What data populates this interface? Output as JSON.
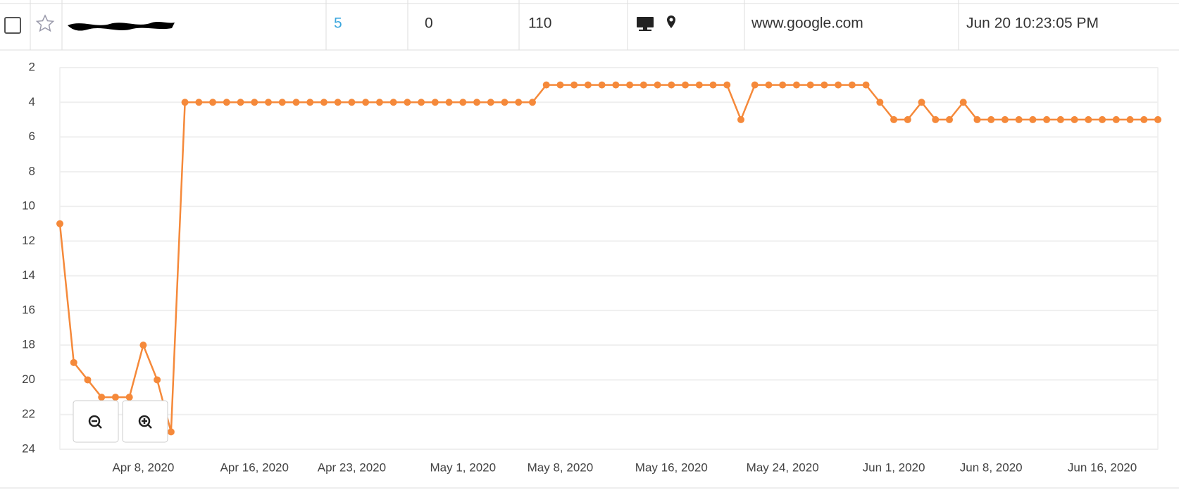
{
  "row": {
    "position": 5,
    "change": 0,
    "volume": 110,
    "url": "www.google.com",
    "updated": "Jun 20 10:23:05 PM"
  },
  "chart_data": {
    "type": "line",
    "x": [
      "2020-04-02",
      "2020-04-03",
      "2020-04-04",
      "2020-04-05",
      "2020-04-06",
      "2020-04-07",
      "2020-04-08",
      "2020-04-09",
      "2020-04-10",
      "2020-04-11",
      "2020-04-12",
      "2020-04-13",
      "2020-04-14",
      "2020-04-15",
      "2020-04-16",
      "2020-04-17",
      "2020-04-18",
      "2020-04-19",
      "2020-04-20",
      "2020-04-21",
      "2020-04-22",
      "2020-04-23",
      "2020-04-24",
      "2020-04-25",
      "2020-04-26",
      "2020-04-27",
      "2020-04-28",
      "2020-04-29",
      "2020-04-30",
      "2020-05-01",
      "2020-05-02",
      "2020-05-03",
      "2020-05-04",
      "2020-05-05",
      "2020-05-06",
      "2020-05-07",
      "2020-05-08",
      "2020-05-09",
      "2020-05-10",
      "2020-05-11",
      "2020-05-12",
      "2020-05-13",
      "2020-05-14",
      "2020-05-15",
      "2020-05-16",
      "2020-05-17",
      "2020-05-18",
      "2020-05-19",
      "2020-05-20",
      "2020-05-21",
      "2020-05-22",
      "2020-05-23",
      "2020-05-24",
      "2020-05-25",
      "2020-05-26",
      "2020-05-27",
      "2020-05-28",
      "2020-05-29",
      "2020-05-30",
      "2020-05-31",
      "2020-06-01",
      "2020-06-02",
      "2020-06-03",
      "2020-06-04",
      "2020-06-05",
      "2020-06-06",
      "2020-06-07",
      "2020-06-08",
      "2020-06-09",
      "2020-06-10",
      "2020-06-11",
      "2020-06-12",
      "2020-06-13",
      "2020-06-14",
      "2020-06-15",
      "2020-06-16",
      "2020-06-17",
      "2020-06-18",
      "2020-06-19",
      "2020-06-20"
    ],
    "series": [
      {
        "color": "#f5893a",
        "values": [
          11,
          19,
          20,
          21,
          21,
          21,
          18,
          20,
          23,
          4,
          4,
          4,
          4,
          4,
          4,
          4,
          4,
          4,
          4,
          4,
          4,
          4,
          4,
          4,
          4,
          4,
          4,
          4,
          4,
          4,
          4,
          4,
          4,
          4,
          4,
          3,
          3,
          3,
          3,
          3,
          3,
          3,
          3,
          3,
          3,
          3,
          3,
          3,
          3,
          5,
          3,
          3,
          3,
          3,
          3,
          3,
          3,
          3,
          3,
          4,
          5,
          5,
          4,
          5,
          5,
          4,
          5,
          5,
          5,
          5,
          5,
          5,
          5,
          5,
          5,
          5,
          5,
          5,
          5,
          5
        ]
      }
    ],
    "xlim": [
      "2020-04-02",
      "2020-06-20"
    ],
    "xticks": [
      {
        "value": "2020-04-08",
        "label": "Apr 8, 2020"
      },
      {
        "value": "2020-04-16",
        "label": "Apr 16, 2020"
      },
      {
        "value": "2020-04-23",
        "label": "Apr 23, 2020"
      },
      {
        "value": "2020-05-01",
        "label": "May 1, 2020"
      },
      {
        "value": "2020-05-08",
        "label": "May 8, 2020"
      },
      {
        "value": "2020-05-16",
        "label": "May 16, 2020"
      },
      {
        "value": "2020-05-24",
        "label": "May 24, 2020"
      },
      {
        "value": "2020-06-01",
        "label": "Jun 1, 2020"
      },
      {
        "value": "2020-06-08",
        "label": "Jun 8, 2020"
      },
      {
        "value": "2020-06-16",
        "label": "Jun 16, 2020"
      }
    ],
    "ylim": [
      2,
      24
    ],
    "y_inverted": true,
    "yticks": [
      2,
      4,
      6,
      8,
      10,
      12,
      14,
      16,
      18,
      20,
      22,
      24
    ],
    "grid": true
  }
}
